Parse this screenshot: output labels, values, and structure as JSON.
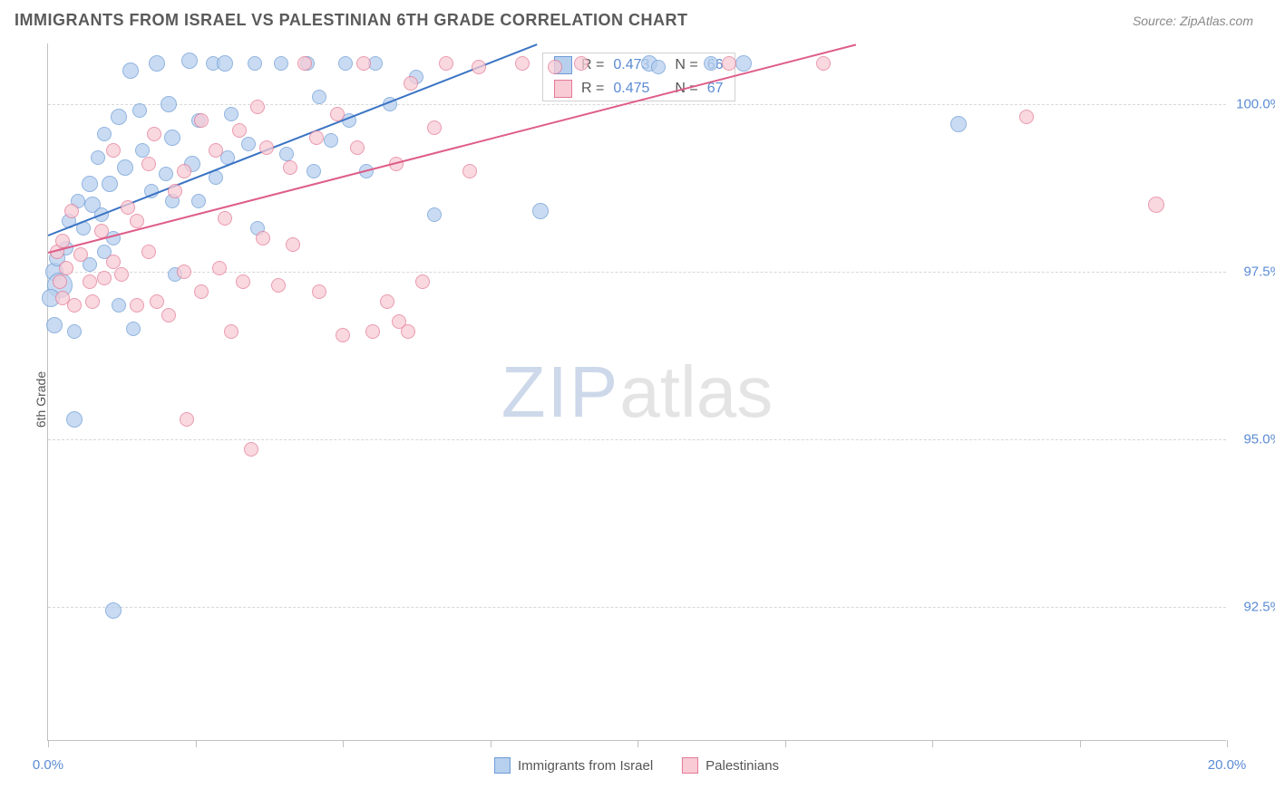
{
  "header": {
    "title": "IMMIGRANTS FROM ISRAEL VS PALESTINIAN 6TH GRADE CORRELATION CHART",
    "source_prefix": "Source: ",
    "source_name": "ZipAtlas.com"
  },
  "chart": {
    "type": "scatter",
    "ylabel": "6th Grade",
    "xlim": [
      0.0,
      20.0
    ],
    "ylim": [
      90.5,
      100.9
    ],
    "xticks": [
      0.0,
      2.5,
      5.0,
      7.5,
      10.0,
      12.5,
      15.0,
      17.5,
      20.0
    ],
    "xtick_labels": {
      "0": "0.0%",
      "20": "20.0%"
    },
    "yticks": [
      92.5,
      95.0,
      97.5,
      100.0
    ],
    "ytick_labels": [
      "92.5%",
      "95.0%",
      "97.5%",
      "100.0%"
    ],
    "gridline_color": "#d8d8d8",
    "axis_color": "#c0c0c0",
    "background_color": "#ffffff",
    "watermark": {
      "zip": "ZIP",
      "atlas": "atlas"
    },
    "series": [
      {
        "id": "israel",
        "label": "Immigrants from Israel",
        "fill": "#b7d0ee",
        "stroke": "#6d9cd6",
        "line_color": "#3a74c4",
        "r_value": "0.473",
        "n_value": "66",
        "trend": {
          "x1": 0.0,
          "y1": 98.05,
          "x2": 8.3,
          "y2": 100.9
        },
        "points": [
          {
            "x": 0.1,
            "y": 97.5,
            "r": 10
          },
          {
            "x": 0.2,
            "y": 97.3,
            "r": 14
          },
          {
            "x": 0.15,
            "y": 97.7,
            "r": 9
          },
          {
            "x": 0.3,
            "y": 97.85,
            "r": 8
          },
          {
            "x": 0.35,
            "y": 98.25,
            "r": 8
          },
          {
            "x": 0.05,
            "y": 97.1,
            "r": 10
          },
          {
            "x": 0.1,
            "y": 96.7,
            "r": 9
          },
          {
            "x": 0.45,
            "y": 96.6,
            "r": 8
          },
          {
            "x": 0.6,
            "y": 98.15,
            "r": 8
          },
          {
            "x": 0.7,
            "y": 98.8,
            "r": 9
          },
          {
            "x": 0.7,
            "y": 97.6,
            "r": 8
          },
          {
            "x": 0.75,
            "y": 98.5,
            "r": 9
          },
          {
            "x": 0.85,
            "y": 99.2,
            "r": 8
          },
          {
            "x": 0.9,
            "y": 98.35,
            "r": 8
          },
          {
            "x": 0.95,
            "y": 99.55,
            "r": 8
          },
          {
            "x": 1.05,
            "y": 98.8,
            "r": 9
          },
          {
            "x": 1.1,
            "y": 98.0,
            "r": 8
          },
          {
            "x": 1.2,
            "y": 99.8,
            "r": 9
          },
          {
            "x": 1.2,
            "y": 97.0,
            "r": 8
          },
          {
            "x": 1.3,
            "y": 99.05,
            "r": 9
          },
          {
            "x": 1.4,
            "y": 100.5,
            "r": 9
          },
          {
            "x": 1.45,
            "y": 96.65,
            "r": 8
          },
          {
            "x": 1.55,
            "y": 99.9,
            "r": 8
          },
          {
            "x": 1.6,
            "y": 99.3,
            "r": 8
          },
          {
            "x": 1.75,
            "y": 98.7,
            "r": 8
          },
          {
            "x": 1.85,
            "y": 100.6,
            "r": 9
          },
          {
            "x": 2.0,
            "y": 98.95,
            "r": 8
          },
          {
            "x": 2.05,
            "y": 100.0,
            "r": 9
          },
          {
            "x": 2.1,
            "y": 99.5,
            "r": 9
          },
          {
            "x": 2.1,
            "y": 98.55,
            "r": 8
          },
          {
            "x": 2.15,
            "y": 97.45,
            "r": 8
          },
          {
            "x": 2.4,
            "y": 100.65,
            "r": 9
          },
          {
            "x": 2.45,
            "y": 99.1,
            "r": 9
          },
          {
            "x": 2.55,
            "y": 99.75,
            "r": 8
          },
          {
            "x": 2.55,
            "y": 98.55,
            "r": 8
          },
          {
            "x": 2.8,
            "y": 100.6,
            "r": 8
          },
          {
            "x": 2.85,
            "y": 98.9,
            "r": 8
          },
          {
            "x": 3.0,
            "y": 100.6,
            "r": 9
          },
          {
            "x": 3.05,
            "y": 99.2,
            "r": 8
          },
          {
            "x": 3.1,
            "y": 99.85,
            "r": 8
          },
          {
            "x": 3.4,
            "y": 99.4,
            "r": 8
          },
          {
            "x": 3.5,
            "y": 100.6,
            "r": 8
          },
          {
            "x": 3.55,
            "y": 98.15,
            "r": 8
          },
          {
            "x": 3.95,
            "y": 100.6,
            "r": 8
          },
          {
            "x": 4.05,
            "y": 99.25,
            "r": 8
          },
          {
            "x": 4.4,
            "y": 100.6,
            "r": 8
          },
          {
            "x": 4.5,
            "y": 99.0,
            "r": 8
          },
          {
            "x": 4.6,
            "y": 100.1,
            "r": 8
          },
          {
            "x": 4.8,
            "y": 99.45,
            "r": 8
          },
          {
            "x": 5.05,
            "y": 100.6,
            "r": 8
          },
          {
            "x": 5.1,
            "y": 99.75,
            "r": 8
          },
          {
            "x": 5.4,
            "y": 99.0,
            "r": 8
          },
          {
            "x": 5.55,
            "y": 100.6,
            "r": 8
          },
          {
            "x": 5.8,
            "y": 100.0,
            "r": 8
          },
          {
            "x": 6.25,
            "y": 100.4,
            "r": 8
          },
          {
            "x": 6.55,
            "y": 98.35,
            "r": 8
          },
          {
            "x": 8.35,
            "y": 98.4,
            "r": 9
          },
          {
            "x": 10.2,
            "y": 100.6,
            "r": 9
          },
          {
            "x": 10.35,
            "y": 100.55,
            "r": 8
          },
          {
            "x": 11.25,
            "y": 100.6,
            "r": 8
          },
          {
            "x": 11.8,
            "y": 100.6,
            "r": 9
          },
          {
            "x": 15.45,
            "y": 99.7,
            "r": 9
          },
          {
            "x": 0.45,
            "y": 95.3,
            "r": 9
          },
          {
            "x": 1.1,
            "y": 92.45,
            "r": 9
          },
          {
            "x": 0.95,
            "y": 97.8,
            "r": 8
          },
          {
            "x": 0.5,
            "y": 98.55,
            "r": 8
          }
        ]
      },
      {
        "id": "palestinian",
        "label": "Palestinians",
        "fill": "#f8cbd5",
        "stroke": "#e47a95",
        "line_color": "#de5d88",
        "r_value": "0.475",
        "n_value": "67",
        "trend": {
          "x1": 0.0,
          "y1": 97.8,
          "x2": 13.7,
          "y2": 100.9
        },
        "points": [
          {
            "x": 0.15,
            "y": 97.8,
            "r": 8
          },
          {
            "x": 0.25,
            "y": 97.1,
            "r": 8
          },
          {
            "x": 0.3,
            "y": 97.55,
            "r": 8
          },
          {
            "x": 0.25,
            "y": 97.95,
            "r": 8
          },
          {
            "x": 0.4,
            "y": 98.4,
            "r": 8
          },
          {
            "x": 0.45,
            "y": 97.0,
            "r": 8
          },
          {
            "x": 0.55,
            "y": 97.75,
            "r": 8
          },
          {
            "x": 0.7,
            "y": 97.35,
            "r": 8
          },
          {
            "x": 0.75,
            "y": 97.05,
            "r": 8
          },
          {
            "x": 0.9,
            "y": 98.1,
            "r": 8
          },
          {
            "x": 0.95,
            "y": 97.4,
            "r": 8
          },
          {
            "x": 1.1,
            "y": 99.3,
            "r": 8
          },
          {
            "x": 1.1,
            "y": 97.65,
            "r": 8
          },
          {
            "x": 1.25,
            "y": 97.45,
            "r": 8
          },
          {
            "x": 1.35,
            "y": 98.45,
            "r": 8
          },
          {
            "x": 1.5,
            "y": 97.0,
            "r": 8
          },
          {
            "x": 1.5,
            "y": 98.25,
            "r": 8
          },
          {
            "x": 1.7,
            "y": 99.1,
            "r": 8
          },
          {
            "x": 1.7,
            "y": 97.8,
            "r": 8
          },
          {
            "x": 1.8,
            "y": 99.55,
            "r": 8
          },
          {
            "x": 1.85,
            "y": 97.05,
            "r": 8
          },
          {
            "x": 2.05,
            "y": 96.85,
            "r": 8
          },
          {
            "x": 2.15,
            "y": 98.7,
            "r": 8
          },
          {
            "x": 2.3,
            "y": 99.0,
            "r": 8
          },
          {
            "x": 2.3,
            "y": 97.5,
            "r": 8
          },
          {
            "x": 2.35,
            "y": 95.3,
            "r": 8
          },
          {
            "x": 2.6,
            "y": 99.75,
            "r": 8
          },
          {
            "x": 2.6,
            "y": 97.2,
            "r": 8
          },
          {
            "x": 2.85,
            "y": 99.3,
            "r": 8
          },
          {
            "x": 2.9,
            "y": 97.55,
            "r": 8
          },
          {
            "x": 3.0,
            "y": 98.3,
            "r": 8
          },
          {
            "x": 3.1,
            "y": 96.6,
            "r": 8
          },
          {
            "x": 3.25,
            "y": 99.6,
            "r": 8
          },
          {
            "x": 3.3,
            "y": 97.35,
            "r": 8
          },
          {
            "x": 3.45,
            "y": 94.85,
            "r": 8
          },
          {
            "x": 3.55,
            "y": 99.95,
            "r": 8
          },
          {
            "x": 3.65,
            "y": 98.0,
            "r": 8
          },
          {
            "x": 3.7,
            "y": 99.35,
            "r": 8
          },
          {
            "x": 3.9,
            "y": 97.3,
            "r": 8
          },
          {
            "x": 4.1,
            "y": 99.05,
            "r": 8
          },
          {
            "x": 4.15,
            "y": 97.9,
            "r": 8
          },
          {
            "x": 4.35,
            "y": 100.6,
            "r": 8
          },
          {
            "x": 4.55,
            "y": 99.5,
            "r": 8
          },
          {
            "x": 4.6,
            "y": 97.2,
            "r": 8
          },
          {
            "x": 4.9,
            "y": 99.85,
            "r": 8
          },
          {
            "x": 5.0,
            "y": 96.55,
            "r": 8
          },
          {
            "x": 5.25,
            "y": 99.35,
            "r": 8
          },
          {
            "x": 5.35,
            "y": 100.6,
            "r": 8
          },
          {
            "x": 5.5,
            "y": 96.6,
            "r": 8
          },
          {
            "x": 5.75,
            "y": 97.05,
            "r": 8
          },
          {
            "x": 5.9,
            "y": 99.1,
            "r": 8
          },
          {
            "x": 5.95,
            "y": 96.75,
            "r": 8
          },
          {
            "x": 6.1,
            "y": 96.6,
            "r": 8
          },
          {
            "x": 6.15,
            "y": 100.3,
            "r": 8
          },
          {
            "x": 6.35,
            "y": 97.35,
            "r": 8
          },
          {
            "x": 6.55,
            "y": 99.65,
            "r": 8
          },
          {
            "x": 6.75,
            "y": 100.6,
            "r": 8
          },
          {
            "x": 7.15,
            "y": 99.0,
            "r": 8
          },
          {
            "x": 7.3,
            "y": 100.55,
            "r": 8
          },
          {
            "x": 8.05,
            "y": 100.6,
            "r": 8
          },
          {
            "x": 8.6,
            "y": 100.55,
            "r": 8
          },
          {
            "x": 9.05,
            "y": 100.6,
            "r": 8
          },
          {
            "x": 11.55,
            "y": 100.6,
            "r": 8
          },
          {
            "x": 13.15,
            "y": 100.6,
            "r": 8
          },
          {
            "x": 16.6,
            "y": 99.8,
            "r": 8
          },
          {
            "x": 18.8,
            "y": 98.5,
            "r": 9
          },
          {
            "x": 0.2,
            "y": 97.35,
            "r": 8
          }
        ]
      }
    ],
    "stats_labels": {
      "r": "R =",
      "n": "N ="
    }
  }
}
